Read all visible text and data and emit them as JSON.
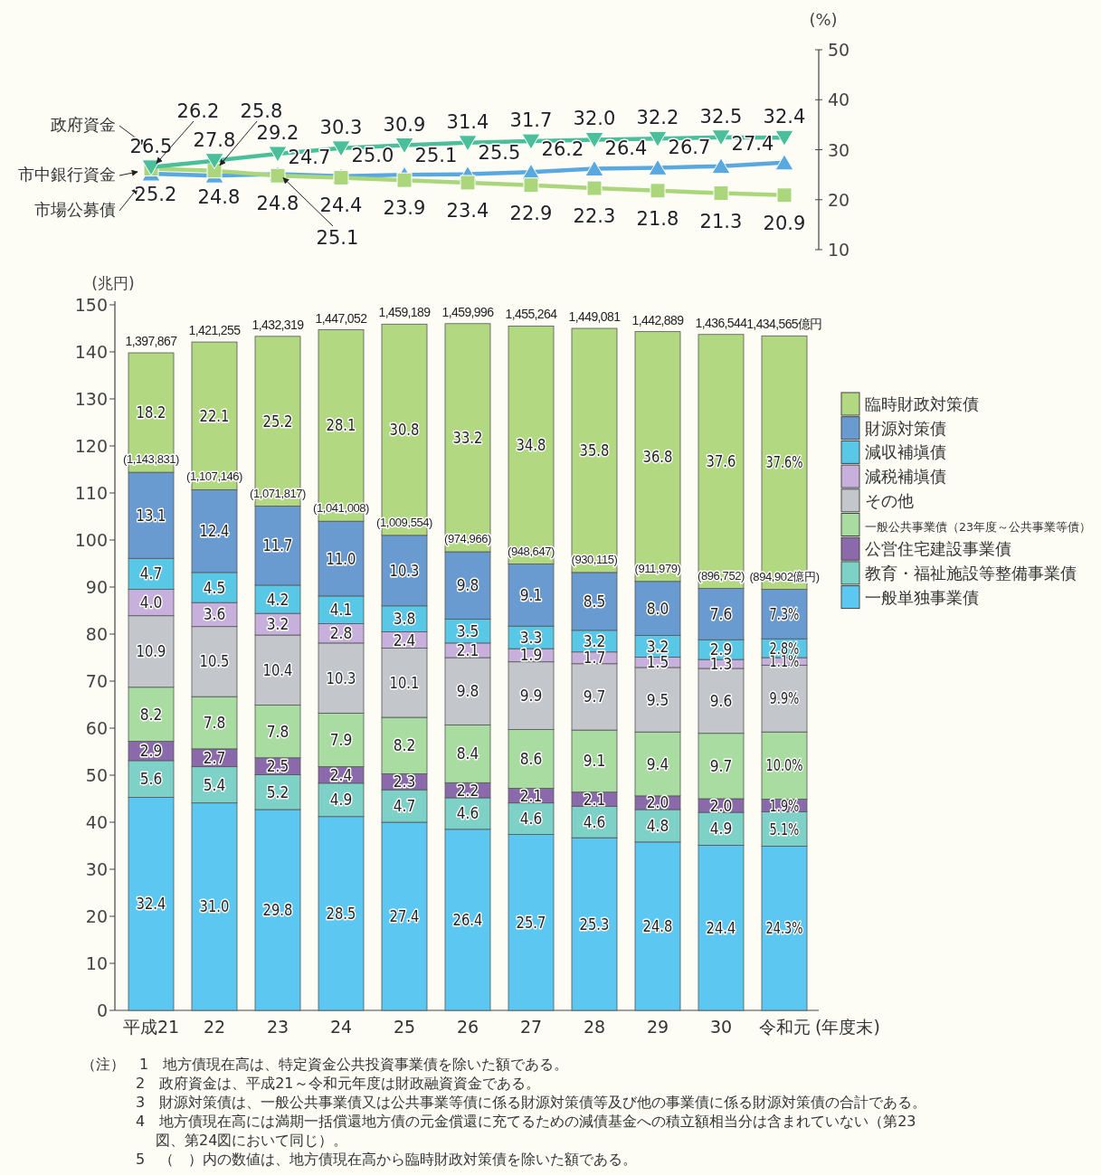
{
  "chart_data": [
    {
      "type": "line",
      "ylabel": "(%)",
      "categories": [
        null,
        null,
        null,
        null,
        null,
        null,
        null,
        null,
        null,
        null,
        null
      ],
      "ylim": [
        10,
        50
      ],
      "yticks": [
        10,
        20,
        30,
        40,
        50
      ],
      "tick_labels": "y",
      "legend": false,
      "grid": false,
      "line_style": "solid",
      "series": [
        {
          "name": "政府資金",
          "color": "#4bbf9a",
          "marker": "triangle",
          "values": [
            26.5,
            27.8,
            29.2,
            30.3,
            30.9,
            31.4,
            31.7,
            32.0,
            32.2,
            32.5,
            32.4
          ],
          "value_labels": [
            "26.5",
            "27.8",
            "29.2",
            "30.3",
            "30.9",
            "31.4",
            "31.7",
            "32.0",
            "32.2",
            "32.5",
            "32.4"
          ]
        },
        {
          "name": "市中銀行資金",
          "color": "#acd67c",
          "marker": "square",
          "values": [
            26.2,
            25.8,
            24.8,
            24.4,
            23.9,
            23.4,
            22.9,
            22.3,
            21.8,
            21.3,
            20.9
          ],
          "value_labels": [
            "26.2",
            "25.8",
            "24.8",
            "24.4",
            "23.9",
            "23.4",
            "22.9",
            "22.3",
            "21.8",
            "21.3",
            "20.9"
          ]
        },
        {
          "name": "市場公募債",
          "color": "#5aa8e0",
          "marker": "triangle",
          "values": [
            25.2,
            24.8,
            25.1,
            24.7,
            25.0,
            25.1,
            25.5,
            26.2,
            26.4,
            26.7,
            27.4
          ],
          "value_labels": [
            "25.2",
            "24.8",
            "25.1",
            "24.7",
            "25.0",
            "25.1",
            "25.5",
            "26.2",
            "26.4",
            "26.7",
            "27.4"
          ]
        }
      ]
    },
    {
      "type": "bar",
      "stacked": true,
      "ylabel": "(兆円)",
      "xlabel": "(年度末)",
      "categories": [
        "平成21",
        "22",
        "23",
        "24",
        "25",
        "26",
        "27",
        "28",
        "29",
        "30",
        "令和元"
      ],
      "ylim": [
        0,
        150
      ],
      "yticks": [
        0,
        10,
        20,
        30,
        40,
        50,
        60,
        70,
        80,
        90,
        100,
        110,
        120,
        130,
        140,
        150
      ],
      "legend": "right",
      "grid": false,
      "series": [
        {
          "name": "一般単独事業債",
          "color": "#5cc8f2",
          "values": [
            45.3,
            44.1,
            42.7,
            41.2,
            40.0,
            38.5,
            37.4,
            36.7,
            35.8,
            35.1,
            34.9
          ]
        },
        {
          "name": "教育・福祉施設等整備事業債",
          "color": "#7ed1c6",
          "values": [
            7.8,
            7.7,
            7.4,
            7.1,
            6.9,
            6.7,
            6.7,
            6.7,
            6.9,
            7.0,
            7.3
          ]
        },
        {
          "name": "公営住宅建設事業債",
          "color": "#8a6aaa",
          "values": [
            4.1,
            3.8,
            3.6,
            3.5,
            3.4,
            3.2,
            3.1,
            3.0,
            2.9,
            2.9,
            2.7
          ]
        },
        {
          "name": "一般公共事業債（23年度～公共事業等債）",
          "color": "#a8dca0",
          "values": [
            11.5,
            11.1,
            11.2,
            11.4,
            12.0,
            12.3,
            12.5,
            13.2,
            13.6,
            13.9,
            14.3
          ]
        },
        {
          "name": "その他",
          "color": "#c3c7cc",
          "values": [
            15.2,
            14.9,
            14.9,
            14.9,
            14.7,
            14.3,
            14.4,
            14.1,
            13.7,
            13.8,
            14.2
          ]
        },
        {
          "name": "減税補塡債",
          "color": "#c8b0dc",
          "values": [
            5.6,
            5.1,
            4.6,
            4.1,
            3.5,
            3.1,
            2.8,
            2.5,
            2.2,
            1.9,
            1.6
          ]
        },
        {
          "name": "減収補塡債",
          "color": "#58c8e6",
          "values": [
            6.6,
            6.4,
            6.0,
            5.9,
            5.5,
            5.1,
            4.8,
            4.6,
            4.6,
            4.2,
            4.0
          ]
        },
        {
          "name": "財源対策債",
          "color": "#6a9bd0",
          "values": [
            18.3,
            17.6,
            16.8,
            15.9,
            15.0,
            14.3,
            13.2,
            12.3,
            11.5,
            10.9,
            10.5
          ]
        },
        {
          "name": "臨時財政対策債",
          "color": "#b2d982",
          "values": [
            25.4,
            31.4,
            36.1,
            40.7,
            44.9,
            48.5,
            50.6,
            51.9,
            53.1,
            54.0,
            53.9
          ]
        }
      ],
      "annotations": [
        {
          "text": "(1,143,831)",
          "x": "平成21",
          "y": 114.4
        },
        {
          "text": "(1,107,146)",
          "x": "22",
          "y": 110.7
        },
        {
          "text": "(1,071,817)",
          "x": "23",
          "y": 107.2
        },
        {
          "text": "(1,041,008)",
          "x": "24",
          "y": 104.1
        },
        {
          "text": "(1,009,554)",
          "x": "25",
          "y": 101.0
        },
        {
          "text": "(974,966)",
          "x": "26",
          "y": 97.5
        },
        {
          "text": "(948,647)",
          "x": "27",
          "y": 94.9
        },
        {
          "text": "(930,115)",
          "x": "28",
          "y": 93.1
        },
        {
          "text": "(911,979)",
          "x": "29",
          "y": 91.2
        },
        {
          "text": "(896,752)",
          "x": "30",
          "y": 89.7
        },
        {
          "text": "(894,902億円)",
          "x": "令和元",
          "y": 89.5
        },
        {
          "text": "1,397,867",
          "x": "平成21",
          "y": 139.8
        },
        {
          "text": "1,421,255",
          "x": "22",
          "y": 142.1
        },
        {
          "text": "1,432,319",
          "x": "23",
          "y": 143.3
        },
        {
          "text": "1,447,052",
          "x": "24",
          "y": 144.7
        },
        {
          "text": "1,459,189",
          "x": "25",
          "y": 145.9
        },
        {
          "text": "1,459,996",
          "x": "26",
          "y": 146.0
        },
        {
          "text": "1,455,264",
          "x": "27",
          "y": 145.5
        },
        {
          "text": "1,449,081",
          "x": "28",
          "y": 145.0
        },
        {
          "text": "1,442,889",
          "x": "29",
          "y": 144.3
        },
        {
          "text": "1,436,544",
          "x": "30",
          "y": 143.7
        },
        {
          "text": "1,434,565億円",
          "x": "令和元",
          "y": 143.4
        },
        "32.4",
        "31.0",
        "29.8",
        "28.5",
        "27.4",
        "26.4",
        "25.7",
        "25.3",
        "24.8",
        "24.4",
        "24.3%",
        "5.6",
        "5.4",
        "5.2",
        "4.9",
        "4.7",
        "4.6",
        "4.6",
        "4.6",
        "4.8",
        "4.9",
        "5.1%",
        "2.9",
        "2.7",
        "2.5",
        "2.4",
        "2.3",
        "2.2",
        "2.1",
        "2.1",
        "2.0",
        "2.0",
        "1.9%",
        "8.2",
        "7.8",
        "7.8",
        "7.9",
        "8.2",
        "8.4",
        "8.6",
        "9.1",
        "9.4",
        "9.7",
        "10.0%",
        "10.9",
        "10.5",
        "10.4",
        "10.3",
        "10.1",
        "9.8",
        "9.9",
        "9.7",
        "9.5",
        "9.6",
        "9.9%",
        "4.0",
        "3.6",
        "3.2",
        "2.8",
        "2.4",
        "2.1",
        "1.9",
        "1.7",
        "1.5",
        "1.3",
        "1.1%",
        "4.7",
        "4.5",
        "4.2",
        "4.1",
        "3.8",
        "3.5",
        "3.3",
        "3.2",
        "3.2",
        "2.9",
        "2.8%",
        "13.1",
        "12.4",
        "11.7",
        "11.0",
        "10.3",
        "9.8",
        "9.1",
        "8.5",
        "8.0",
        "7.6",
        "7.3%",
        "18.2",
        "22.1",
        "25.2",
        "28.1",
        "30.8",
        "33.2",
        "34.8",
        "35.8",
        "36.8",
        "37.6",
        "37.6%",
        "（注）　1　地方債現在高は、特定資金公共投資事業債を除いた額である。",
        "2　政府資金は、平成21～令和元年度は財政融資資金である。",
        "3　財源対策債は、一般公共事業債又は公共事業等債に係る財源対策債等及び他の事業債に係る財源対策債の合計である。",
        "4　地方債現在高には満期一括償還地方債の元金償還に充てるための減債基金への積立額相当分は含まれていない（第23図、第24図において同じ）。",
        "5　（　）内の数値は、地方債現在高から臨時財政対策債を除いた額である。"
      ]
    }
  ]
}
